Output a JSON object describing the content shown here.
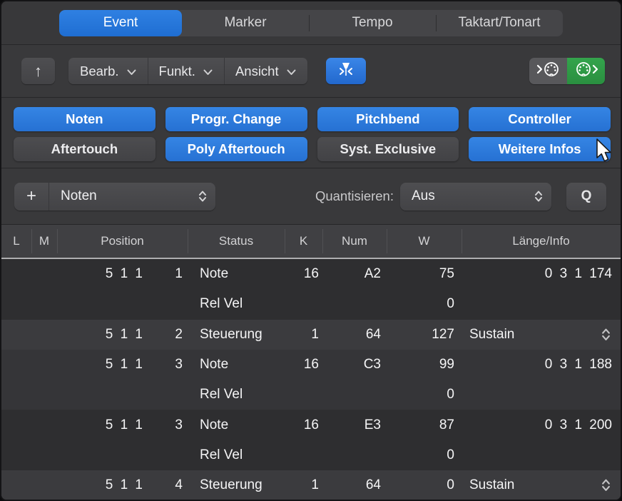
{
  "tab_bar": {
    "tabs": [
      {
        "label": "Event",
        "active": true
      },
      {
        "label": "Marker",
        "active": false
      },
      {
        "label": "Tempo",
        "active": false
      },
      {
        "label": "Taktart/Tonart",
        "active": false
      }
    ],
    "active_color": "#2376d8"
  },
  "toolbar": {
    "up_arrow_glyph": "↑",
    "menus": [
      {
        "label": "Bearb."
      },
      {
        "label": "Funkt."
      },
      {
        "label": "Ansicht"
      }
    ],
    "midi_in_toggle": {
      "icon": "midi-in-catch-icon",
      "active": true,
      "color": "#2b79de"
    },
    "midi_io": {
      "input": {
        "icon": "midi-input-icon",
        "active": false
      },
      "output": {
        "icon": "midi-output-icon",
        "active": true,
        "color": "#2f9e44"
      }
    }
  },
  "filters": {
    "active_color": "#2e7de2",
    "buttons": [
      {
        "label": "Noten",
        "active": true
      },
      {
        "label": "Progr. Change",
        "active": true
      },
      {
        "label": "Pitchbend",
        "active": true
      },
      {
        "label": "Controller",
        "active": true
      },
      {
        "label": "Aftertouch",
        "active": false
      },
      {
        "label": "Poly Aftertouch",
        "active": true
      },
      {
        "label": "Syst. Exclusive",
        "active": false
      },
      {
        "label": "Weitere Infos",
        "active": true
      }
    ]
  },
  "create_row": {
    "add_button": "+",
    "event_type_value": "Noten",
    "quantize_label": "Quantisieren:",
    "quantize_value": "Aus",
    "quantize_button": "Q"
  },
  "table": {
    "headers": [
      "L",
      "M",
      "Position",
      "Status",
      "K",
      "Num",
      "W",
      "Länge/Info"
    ],
    "rows": [
      {
        "position": "5 1 1",
        "subpos": "1",
        "status": "Note",
        "k": "16",
        "num": "A2",
        "w": "75",
        "info": "0 3 1 174",
        "kind": "note",
        "shade": "dark"
      },
      {
        "position": "",
        "subpos": "",
        "status": "Rel Vel",
        "k": "",
        "num": "",
        "w": "0",
        "info": "",
        "kind": "relvel",
        "shade": "dark"
      },
      {
        "position": "5 1 1",
        "subpos": "2",
        "status": "Steuerung",
        "k": "1",
        "num": "64",
        "w": "127",
        "info": "Sustain",
        "kind": "control",
        "shade": "light"
      },
      {
        "position": "5 1 1",
        "subpos": "3",
        "status": "Note",
        "k": "16",
        "num": "C3",
        "w": "99",
        "info": "0 3 1 188",
        "kind": "note",
        "shade": "mid"
      },
      {
        "position": "",
        "subpos": "",
        "status": "Rel Vel",
        "k": "",
        "num": "",
        "w": "0",
        "info": "",
        "kind": "relvel",
        "shade": "mid"
      },
      {
        "position": "5 1 1",
        "subpos": "3",
        "status": "Note",
        "k": "16",
        "num": "E3",
        "w": "87",
        "info": "0 3 1 200",
        "kind": "note",
        "shade": "dark"
      },
      {
        "position": "",
        "subpos": "",
        "status": "Rel Vel",
        "k": "",
        "num": "",
        "w": "0",
        "info": "",
        "kind": "relvel",
        "shade": "dark"
      },
      {
        "position": "5 1 1",
        "subpos": "4",
        "status": "Steuerung",
        "k": "1",
        "num": "64",
        "w": "0",
        "info": "Sustain",
        "kind": "control",
        "shade": "light"
      }
    ]
  }
}
